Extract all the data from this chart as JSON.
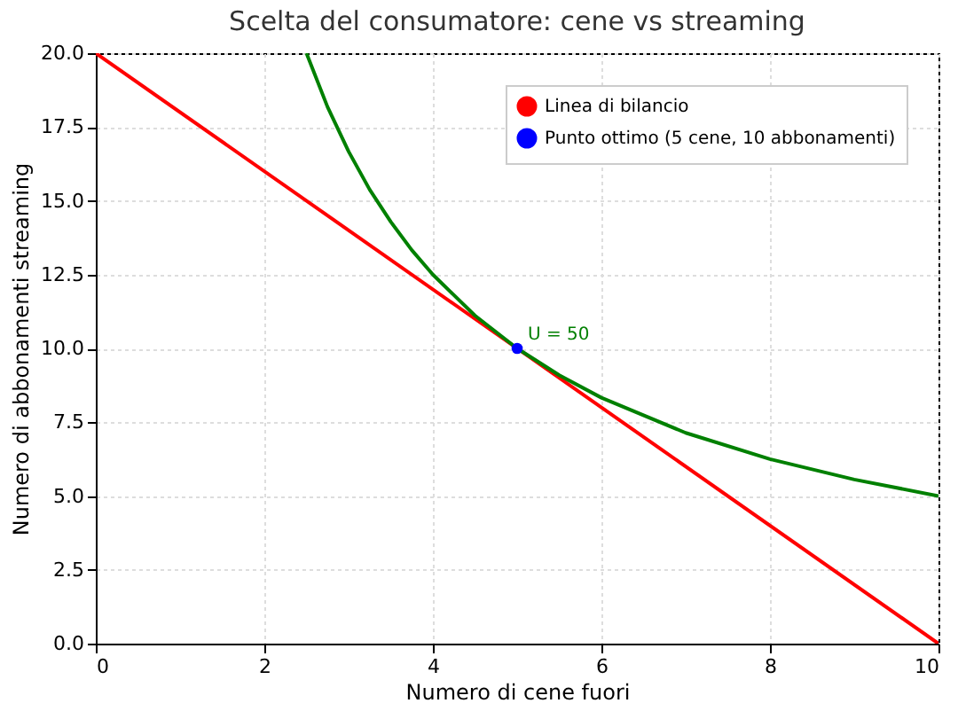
{
  "chart_data": {
    "type": "line",
    "title": "Scelta del consumatore: cene vs streaming",
    "xlabel": "Numero di cene fuori",
    "ylabel": "Numero di abbonamenti streaming",
    "series": [
      {
        "name": "Linea di bilancio",
        "color": "#ff0000",
        "x": [
          0,
          10
        ],
        "values": [
          20,
          0
        ]
      },
      {
        "color": "#008000",
        "x": [
          2.5,
          2.75,
          3,
          3.25,
          3.5,
          3.75,
          4,
          4.5,
          5,
          5.5,
          6,
          7,
          8,
          9,
          10
        ],
        "values": [
          20,
          18.18,
          16.67,
          15.38,
          14.29,
          13.33,
          12.5,
          11.11,
          10,
          9.09,
          8.33,
          7.14,
          6.25,
          5.56,
          5
        ]
      },
      {
        "name": "Punto ottimo (5 cene, 10 abbonamenti)",
        "color": "#0000ff",
        "type": "scatter",
        "x": [
          5
        ],
        "values": [
          10
        ]
      }
    ],
    "annotations": [
      {
        "text": "U = 50",
        "x": 5,
        "y": 10
      }
    ],
    "xlim": [
      0,
      10
    ],
    "xticks": [
      0,
      2,
      4,
      6,
      8,
      10
    ],
    "ylim": [
      0,
      20
    ],
    "yticks": [
      {
        "value": 0,
        "label": "0.0"
      },
      {
        "value": 2.5,
        "label": "2.5"
      },
      {
        "value": 5,
        "label": "5.0"
      },
      {
        "value": 7.5,
        "label": "7.5"
      },
      {
        "value": 10,
        "label": "10.0"
      },
      {
        "value": 12.5,
        "label": "12.5"
      },
      {
        "value": 15,
        "label": "15.0"
      },
      {
        "value": 17.5,
        "label": "17.5"
      },
      {
        "value": 20,
        "label": "20.0"
      }
    ],
    "grid": true,
    "legend": "top right",
    "line_style": "solid"
  }
}
